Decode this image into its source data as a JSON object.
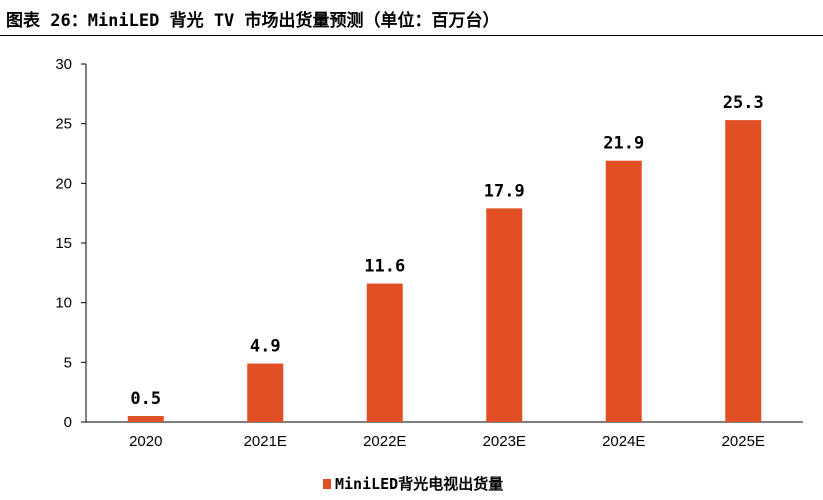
{
  "chart_data": {
    "type": "bar",
    "title": "图表 26：MiniLED 背光 TV 市场出货量预测（单位：百万台）",
    "xlabel": "",
    "ylabel": "",
    "categories": [
      "2020",
      "2021E",
      "2022E",
      "2023E",
      "2024E",
      "2025E"
    ],
    "series": [
      {
        "name": "MiniLED背光电视出货量",
        "values": [
          0.5,
          4.9,
          11.6,
          17.9,
          21.9,
          25.3
        ]
      }
    ],
    "data_labels": [
      "0.5",
      "4.9",
      "11.6",
      "17.9",
      "21.9",
      "25.3"
    ],
    "ylim": [
      0,
      30
    ],
    "yticks": [
      "0",
      "5",
      "10",
      "15",
      "20",
      "25",
      "30"
    ],
    "grid": false,
    "legend_position": "bottom",
    "colors": {
      "bar": "#E05024",
      "axis": "#000000",
      "text": "#000000"
    }
  }
}
